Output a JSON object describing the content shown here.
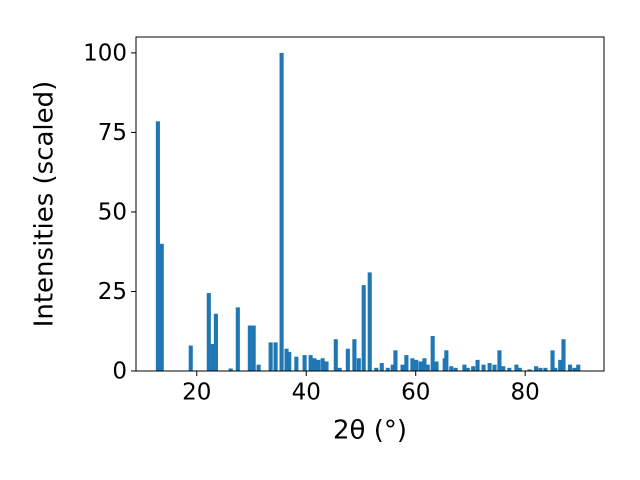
{
  "chart_data": {
    "type": "bar",
    "x_label": "2θ (°)",
    "y_label": "Intensities (scaled)",
    "x": [
      12.9,
      13.6,
      18.9,
      22.2,
      22.9,
      23.5,
      26.2,
      27.5,
      29.7,
      30.4,
      31.3,
      33.5,
      34.4,
      35.5,
      36.4,
      36.9,
      38.2,
      39.7,
      40.8,
      41.5,
      42.2,
      43.0,
      43.7,
      45.4,
      46.1,
      47.6,
      48.8,
      49.6,
      50.5,
      51.6,
      52.8,
      53.8,
      54.9,
      55.8,
      56.3,
      57.6,
      58.3,
      59.4,
      60.1,
      60.9,
      61.6,
      62.2,
      63.1,
      63.8,
      65.3,
      65.6,
      66.5,
      67.3,
      68.9,
      69.5,
      70.5,
      71.3,
      72.4,
      73.5,
      74.4,
      75.3,
      76.0,
      77.1,
      78.4,
      79.0,
      80.8,
      82.0,
      82.8,
      83.7,
      85.0,
      85.5,
      86.4,
      87.0,
      88.2,
      89.0,
      89.7
    ],
    "values": [
      78.5,
      40,
      8,
      24.5,
      8.5,
      18,
      0.8,
      20,
      14.3,
      14.3,
      2,
      9,
      9,
      100,
      7,
      6,
      4.5,
      5,
      5,
      4,
      3.5,
      4,
      3,
      10,
      1,
      7,
      10,
      4,
      27,
      31,
      1,
      2.5,
      1,
      2,
      6.5,
      2,
      5,
      4,
      3.5,
      3,
      4,
      2,
      11,
      3,
      4,
      6.5,
      1.5,
      1,
      2,
      1,
      1.5,
      3.5,
      2,
      2.5,
      2,
      6.5,
      1.5,
      1,
      2,
      1,
      0.5,
      1.5,
      1,
      1,
      6.5,
      1,
      3.5,
      10,
      2,
      1,
      2
    ],
    "color": "#1f77b4",
    "xlim": [
      8.9,
      94.4
    ],
    "ylim": [
      0,
      105
    ],
    "xticks": [
      20,
      40,
      60,
      80
    ],
    "yticks": [
      0,
      25,
      50,
      75,
      100
    ],
    "grid": false
  }
}
